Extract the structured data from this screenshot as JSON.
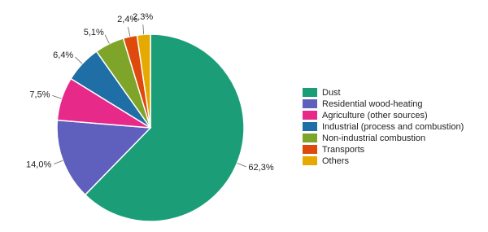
{
  "chart_data": {
    "type": "pie",
    "categories": [
      "Dust",
      "Residential wood-heating",
      "Agriculture (other sources)",
      "Industrial (process and combustion)",
      "Non-industrial combustion",
      "Transports",
      "Others"
    ],
    "values": [
      62.3,
      14.0,
      7.5,
      6.4,
      5.1,
      2.4,
      2.3
    ],
    "value_labels": [
      "62,3%",
      "14,0%",
      "7,5%",
      "6,4%",
      "5,1%",
      "2,4%",
      "2,3%"
    ],
    "colors": [
      "#1b9e77",
      "#5f5fbd",
      "#e7298a",
      "#1f6ea6",
      "#7ea52a",
      "#dd4a0b",
      "#e6a902"
    ],
    "legend": "right"
  }
}
